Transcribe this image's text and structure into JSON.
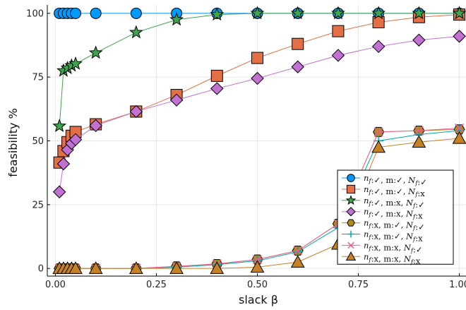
{
  "chart_data": {
    "type": "line",
    "xlabel": "slack β",
    "ylabel": "feasibility %",
    "xlim": [
      -0.02,
      1.02
    ],
    "ylim": [
      -3,
      103
    ],
    "x_ticks": [
      0.0,
      0.25,
      0.5,
      0.75,
      1.0
    ],
    "x_tick_labels": [
      "0.00",
      "0.25",
      "0.50",
      "0.75",
      "1.00"
    ],
    "y_ticks": [
      0,
      25,
      50,
      75,
      100
    ],
    "y_tick_labels": [
      "0",
      "25",
      "50",
      "75",
      "100"
    ],
    "grid": true,
    "legend_position": "bottom-right",
    "series": [
      {
        "name": "nf:✓, m:✓, Nf:✓",
        "color": "#009AFA",
        "marker": "circle",
        "x": [
          0.01,
          0.02,
          0.03,
          0.04,
          0.05,
          0.1,
          0.2,
          0.3,
          0.4,
          0.5,
          0.6,
          0.7,
          0.8,
          0.9,
          1.0
        ],
        "y": [
          100,
          100,
          100,
          100,
          100,
          100,
          100,
          100,
          100,
          100,
          100,
          100,
          100,
          100,
          100
        ]
      },
      {
        "name": "nf:✓, m:✓, Nf:x",
        "color": "#E36F47",
        "marker": "square",
        "x": [
          0.01,
          0.02,
          0.03,
          0.04,
          0.05,
          0.1,
          0.2,
          0.3,
          0.4,
          0.5,
          0.6,
          0.7,
          0.8,
          0.9,
          1.0
        ],
        "y": [
          41.5,
          46,
          49.5,
          52,
          53.5,
          56.5,
          61.5,
          68,
          75.5,
          82.5,
          88,
          93,
          96.5,
          98.5,
          99.5
        ]
      },
      {
        "name": "nf:✓, m:x, Nf:✓",
        "color": "#3EA44E",
        "marker": "star",
        "x": [
          0.01,
          0.02,
          0.03,
          0.04,
          0.05,
          0.1,
          0.2,
          0.3,
          0.4,
          0.5,
          0.6,
          0.7,
          0.8,
          0.9,
          1.0
        ],
        "y": [
          55.8,
          77.5,
          78.5,
          79.5,
          80.2,
          84.5,
          92.5,
          97.5,
          99.5,
          100,
          100,
          100,
          100,
          100,
          100
        ]
      },
      {
        "name": "nf:✓, m:x, Nf:x",
        "color": "#C271D2",
        "marker": "diamond",
        "x": [
          0.01,
          0.02,
          0.03,
          0.04,
          0.05,
          0.1,
          0.2,
          0.3,
          0.4,
          0.5,
          0.6,
          0.7,
          0.8,
          0.9,
          1.0
        ],
        "y": [
          30,
          41,
          46.5,
          49,
          50.5,
          56,
          61.5,
          66,
          70.5,
          74.5,
          79,
          83.5,
          87,
          89.5,
          91
        ]
      },
      {
        "name": "nf:x, m:✓, Nf:✓",
        "color": "#AC8D18",
        "marker": "hexagon",
        "x": [
          0.01,
          0.02,
          0.03,
          0.04,
          0.05,
          0.1,
          0.2,
          0.3,
          0.4,
          0.5,
          0.6,
          0.7,
          0.8,
          0.9,
          1.0
        ],
        "y": [
          0,
          0,
          0,
          0,
          0,
          0,
          0,
          0.8,
          1.7,
          3.5,
          7,
          17.5,
          53.5,
          54,
          54.5
        ]
      },
      {
        "name": "nf:x, m:✓, Nf:x",
        "color": "#00A9AD",
        "marker": "plus",
        "x": [
          0.01,
          0.02,
          0.03,
          0.04,
          0.05,
          0.1,
          0.2,
          0.3,
          0.4,
          0.5,
          0.6,
          0.7,
          0.8,
          0.9,
          1.0
        ],
        "y": [
          0,
          0,
          0,
          0,
          0,
          0,
          0,
          0.5,
          1.5,
          3,
          6.5,
          16,
          50,
          52.5,
          54
        ]
      },
      {
        "name": "nf:x, m:x, Nf:✓",
        "color": "#ED5D92",
        "marker": "cross",
        "x": [
          0.01,
          0.02,
          0.03,
          0.04,
          0.05,
          0.1,
          0.2,
          0.3,
          0.4,
          0.5,
          0.6,
          0.7,
          0.8,
          0.9,
          1.0
        ],
        "y": [
          0,
          0,
          0,
          0,
          0,
          0,
          0,
          0.8,
          1.8,
          3.5,
          7,
          17.5,
          53.5,
          54,
          55
        ]
      },
      {
        "name": "nf:x, m:x, Nf:x",
        "color": "#C68125",
        "marker": "triangle",
        "x": [
          0.01,
          0.02,
          0.03,
          0.04,
          0.05,
          0.1,
          0.2,
          0.3,
          0.4,
          0.5,
          0.6,
          0.7,
          0.8,
          0.9,
          1.0
        ],
        "y": [
          0,
          0,
          0,
          0,
          0,
          0,
          0,
          0,
          0,
          0.5,
          2.5,
          9.5,
          47.5,
          49.5,
          51
        ]
      }
    ],
    "legend": [
      {
        "n": "n",
        "s": "f",
        "a": ":✓, m:✓, ",
        "N": "N",
        "t": "f",
        "b": ":✓"
      },
      {
        "n": "n",
        "s": "f",
        "a": ":✓, m:✓, ",
        "N": "N",
        "t": "f",
        "b": ":x"
      },
      {
        "n": "n",
        "s": "f",
        "a": ":✓, m:x, ",
        "N": "N",
        "t": "f",
        "b": ":✓"
      },
      {
        "n": "n",
        "s": "f",
        "a": ":✓, m:x, ",
        "N": "N",
        "t": "f",
        "b": ":x"
      },
      {
        "n": "n",
        "s": "f",
        "a": ":x, m:✓, ",
        "N": "N",
        "t": "f",
        "b": ":✓"
      },
      {
        "n": "n",
        "s": "f",
        "a": ":x, m:✓, ",
        "N": "N",
        "t": "f",
        "b": ":x"
      },
      {
        "n": "n",
        "s": "f",
        "a": ":x, m:x, ",
        "N": "N",
        "t": "f",
        "b": ":✓"
      },
      {
        "n": "n",
        "s": "f",
        "a": ":x, m:x, ",
        "N": "N",
        "t": "f",
        "b": ":x"
      }
    ]
  }
}
